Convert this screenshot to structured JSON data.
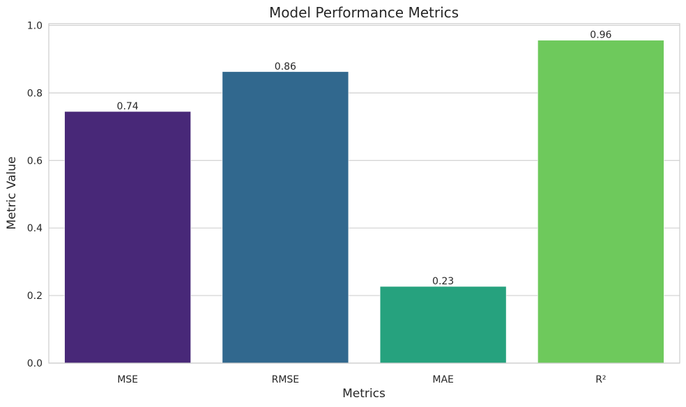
{
  "chart_data": {
    "type": "bar",
    "title": "Model Performance Metrics",
    "xlabel": "Metrics",
    "ylabel": "Metric Value",
    "categories": [
      "MSE",
      "RMSE",
      "MAE",
      "R²"
    ],
    "values": [
      0.745,
      0.863,
      0.227,
      0.956
    ],
    "value_labels": [
      "0.74",
      "0.86",
      "0.23",
      "0.96"
    ],
    "colors": [
      "#482878",
      "#31688e",
      "#26a27e",
      "#6ec95c"
    ],
    "ylim": [
      0,
      1.005
    ],
    "yticks": [
      0.0,
      0.2,
      0.4,
      0.6,
      0.8,
      1.0
    ],
    "ytick_labels": [
      "0.0",
      "0.2",
      "0.4",
      "0.6",
      "0.8",
      "1.0"
    ],
    "grid": "horizontal"
  }
}
